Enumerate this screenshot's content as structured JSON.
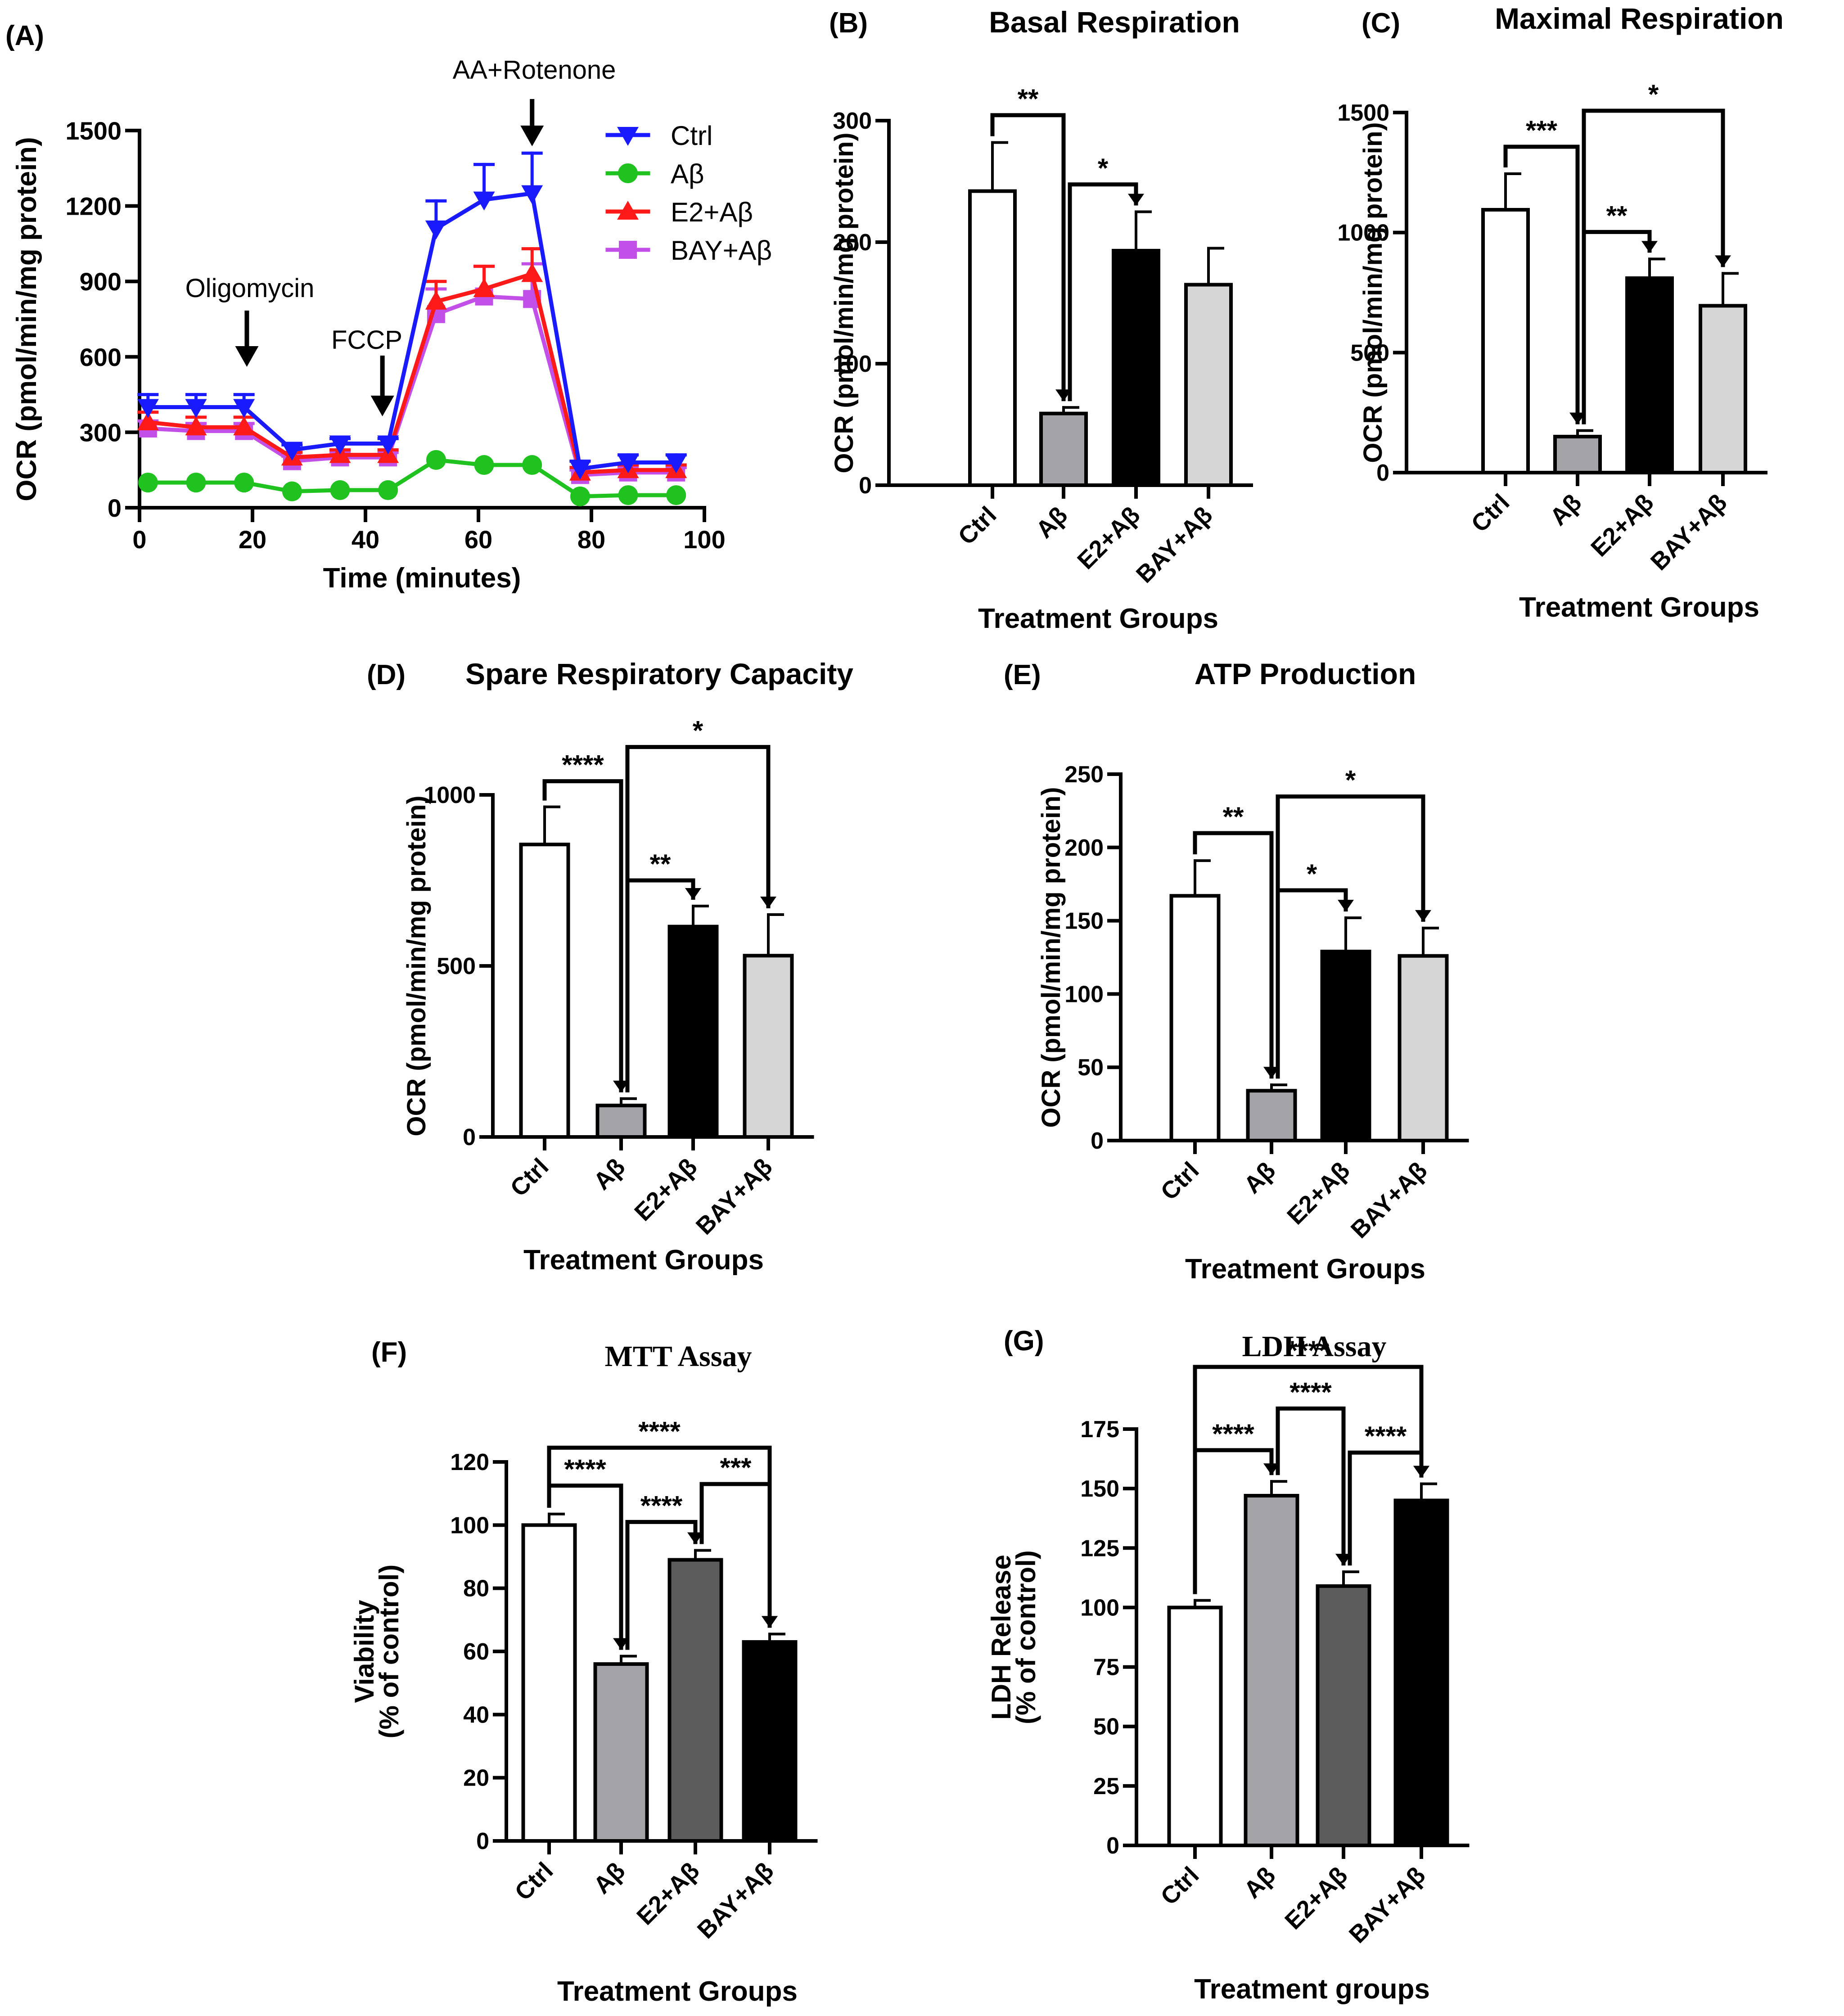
{
  "chart_data": [
    {
      "panel": "(A)",
      "type": "line",
      "title": "",
      "xlabel": "Time (minutes)",
      "ylabel": "OCR (pmol/min/mg protein)",
      "xlim": [
        0,
        100
      ],
      "ylim": [
        0,
        1500
      ],
      "xticks": [
        "0",
        "20",
        "40",
        "60",
        "80",
        "100"
      ],
      "yticks": [
        "0",
        "300",
        "600",
        "900",
        "1200",
        "1500"
      ],
      "grid": false,
      "legend_position": "top-right",
      "x": [
        1.5,
        10,
        18.5,
        27,
        35.5,
        44,
        52.5,
        61,
        69.5,
        78,
        86.5,
        95
      ],
      "series": [
        {
          "name": "Ctrl",
          "color": "#1a1aff",
          "marker": "triangle-down",
          "values": [
            400,
            400,
            400,
            230,
            255,
            255,
            1110,
            1225,
            1250,
            155,
            180,
            180
          ],
          "errors": [
            50,
            50,
            50,
            20,
            20,
            20,
            110,
            140,
            160,
            30,
            30,
            30
          ]
        },
        {
          "name": "Aβ",
          "color": "#1fc21f",
          "marker": "circle",
          "values": [
            100,
            100,
            100,
            65,
            70,
            70,
            190,
            170,
            170,
            45,
            50,
            50
          ],
          "errors": [
            0,
            0,
            0,
            0,
            0,
            0,
            0,
            0,
            0,
            0,
            0,
            0
          ]
        },
        {
          "name": "E2+Aβ",
          "color": "#ff1a1a",
          "marker": "triangle-up",
          "values": [
            340,
            320,
            320,
            200,
            210,
            210,
            820,
            870,
            930,
            140,
            150,
            150
          ],
          "errors": [
            40,
            40,
            40,
            20,
            20,
            20,
            80,
            90,
            100,
            20,
            20,
            20
          ]
        },
        {
          "name": "BAY+Aβ",
          "color": "#c24fe8",
          "marker": "square",
          "values": [
            315,
            305,
            305,
            185,
            200,
            200,
            770,
            840,
            830,
            130,
            140,
            140
          ],
          "errors": [
            30,
            30,
            30,
            20,
            20,
            20,
            100,
            120,
            140,
            20,
            20,
            20
          ]
        }
      ],
      "annotations": [
        {
          "text": "Oligomycin",
          "x": 19
        },
        {
          "text": "FCCP",
          "x": 43
        },
        {
          "text": "AA+Rotenone",
          "x": 69.5
        }
      ]
    },
    {
      "panel": "(B)",
      "type": "bar",
      "title": "Basal Respiration",
      "xlabel": "Treatment Groups",
      "ylabel": "OCR (pmol/min/mg protein)",
      "categories": [
        "Ctrl",
        "Aβ",
        "E2+Aβ",
        "BAY+Aβ"
      ],
      "values": [
        242,
        59,
        193,
        165
      ],
      "errors": [
        40,
        5,
        32,
        30
      ],
      "colors": [
        "#ffffff",
        "#a4a4a8",
        "#000000",
        "#d6d6d6"
      ],
      "ylim": [
        0,
        300
      ],
      "yticks": [
        "0",
        "100",
        "200",
        "300"
      ],
      "significance": [
        {
          "from": 0,
          "to": 1,
          "label": "**"
        },
        {
          "from": 1,
          "to": 2,
          "label": "*"
        }
      ]
    },
    {
      "panel": "(C)",
      "type": "bar",
      "title": "Maximal Respiration",
      "xlabel": "Treatment Groups",
      "ylabel": "OCR (pmol/min/mg protein)",
      "categories": [
        "Ctrl",
        "Aβ",
        "E2+Aβ",
        "BAY+Aβ"
      ],
      "values": [
        1095,
        150,
        810,
        695
      ],
      "errors": [
        150,
        25,
        80,
        135
      ],
      "colors": [
        "#ffffff",
        "#a4a4a8",
        "#000000",
        "#d6d6d6"
      ],
      "ylim": [
        0,
        1500
      ],
      "yticks": [
        "0",
        "500",
        "1000",
        "1500"
      ],
      "significance": [
        {
          "from": 0,
          "to": 1,
          "label": "***"
        },
        {
          "from": 1,
          "to": 2,
          "label": "**"
        },
        {
          "from": 1,
          "to": 3,
          "label": "*"
        }
      ]
    },
    {
      "panel": "(D)",
      "type": "bar",
      "title": "Spare Respiratory Capacity",
      "xlabel": "Treatment Groups",
      "ylabel": "OCR (pmol/min/mg protein)",
      "categories": [
        "Ctrl",
        "Aβ",
        "E2+Aβ",
        "BAY+Aβ"
      ],
      "values": [
        855,
        92,
        615,
        530
      ],
      "errors": [
        110,
        20,
        60,
        120
      ],
      "colors": [
        "#ffffff",
        "#a4a4a8",
        "#000000",
        "#d6d6d6"
      ],
      "ylim": [
        0,
        1000
      ],
      "yticks": [
        "0",
        "500",
        "1000"
      ],
      "significance": [
        {
          "from": 0,
          "to": 1,
          "label": "****"
        },
        {
          "from": 1,
          "to": 2,
          "label": "**"
        },
        {
          "from": 1,
          "to": 3,
          "label": "*"
        }
      ]
    },
    {
      "panel": "(E)",
      "type": "bar",
      "title": "ATP Production",
      "xlabel": "Treatment Groups",
      "ylabel": "OCR (pmol/min/mg protein)",
      "categories": [
        "Ctrl",
        "Aβ",
        "E2+Aβ",
        "BAY+Aβ"
      ],
      "values": [
        167,
        34,
        129,
        126
      ],
      "errors": [
        24,
        4,
        23,
        19
      ],
      "colors": [
        "#ffffff",
        "#a4a4a8",
        "#000000",
        "#d6d6d6"
      ],
      "ylim": [
        0,
        250
      ],
      "yticks": [
        "0",
        "50",
        "100",
        "150",
        "200",
        "250"
      ],
      "significance": [
        {
          "from": 0,
          "to": 1,
          "label": "**"
        },
        {
          "from": 1,
          "to": 2,
          "label": "*"
        },
        {
          "from": 1,
          "to": 3,
          "label": "*"
        }
      ]
    },
    {
      "panel": "(F)",
      "type": "bar",
      "title": "MTT Assay",
      "xlabel": "Treatment Groups",
      "ylabel": "Viability",
      "ylabel2": "(% of control)",
      "categories": [
        "Ctrl",
        "Aβ",
        "E2+Aβ",
        "BAY+Aβ"
      ],
      "values": [
        100,
        56,
        89,
        63
      ],
      "errors": [
        3.5,
        2.5,
        3,
        2.5
      ],
      "colors": [
        "#ffffff",
        "#a4a4a8",
        "#5c5c5c",
        "#000000"
      ],
      "ylim": [
        0,
        120
      ],
      "yticks": [
        "0",
        "20",
        "40",
        "60",
        "80",
        "100",
        "120"
      ],
      "significance": [
        {
          "from": 0,
          "to": 1,
          "label": "****"
        },
        {
          "from": 1,
          "to": 2,
          "label": "****"
        },
        {
          "from": 2,
          "to": 3,
          "label": "***"
        },
        {
          "from": 0,
          "to": 3,
          "label": "****"
        }
      ]
    },
    {
      "panel": "(G)",
      "type": "bar",
      "title": "LDH Assay",
      "xlabel": "Treatment groups",
      "ylabel": "LDH Release",
      "ylabel2": "(% of control)",
      "categories": [
        "Ctrl",
        "Aβ",
        "E2+Aβ",
        "BAY+Aβ"
      ],
      "values": [
        100,
        147,
        109,
        145
      ],
      "errors": [
        3,
        6,
        6,
        7
      ],
      "colors": [
        "#ffffff",
        "#a4a4a8",
        "#5c5c5c",
        "#000000"
      ],
      "ylim": [
        0,
        175
      ],
      "yticks": [
        "0",
        "25",
        "50",
        "75",
        "100",
        "125",
        "150",
        "175"
      ],
      "significance": [
        {
          "from": 0,
          "to": 1,
          "label": "****"
        },
        {
          "from": 1,
          "to": 2,
          "label": "****"
        },
        {
          "from": 2,
          "to": 3,
          "label": "****"
        },
        {
          "from": 0,
          "to": 3,
          "label": "****"
        }
      ]
    }
  ]
}
